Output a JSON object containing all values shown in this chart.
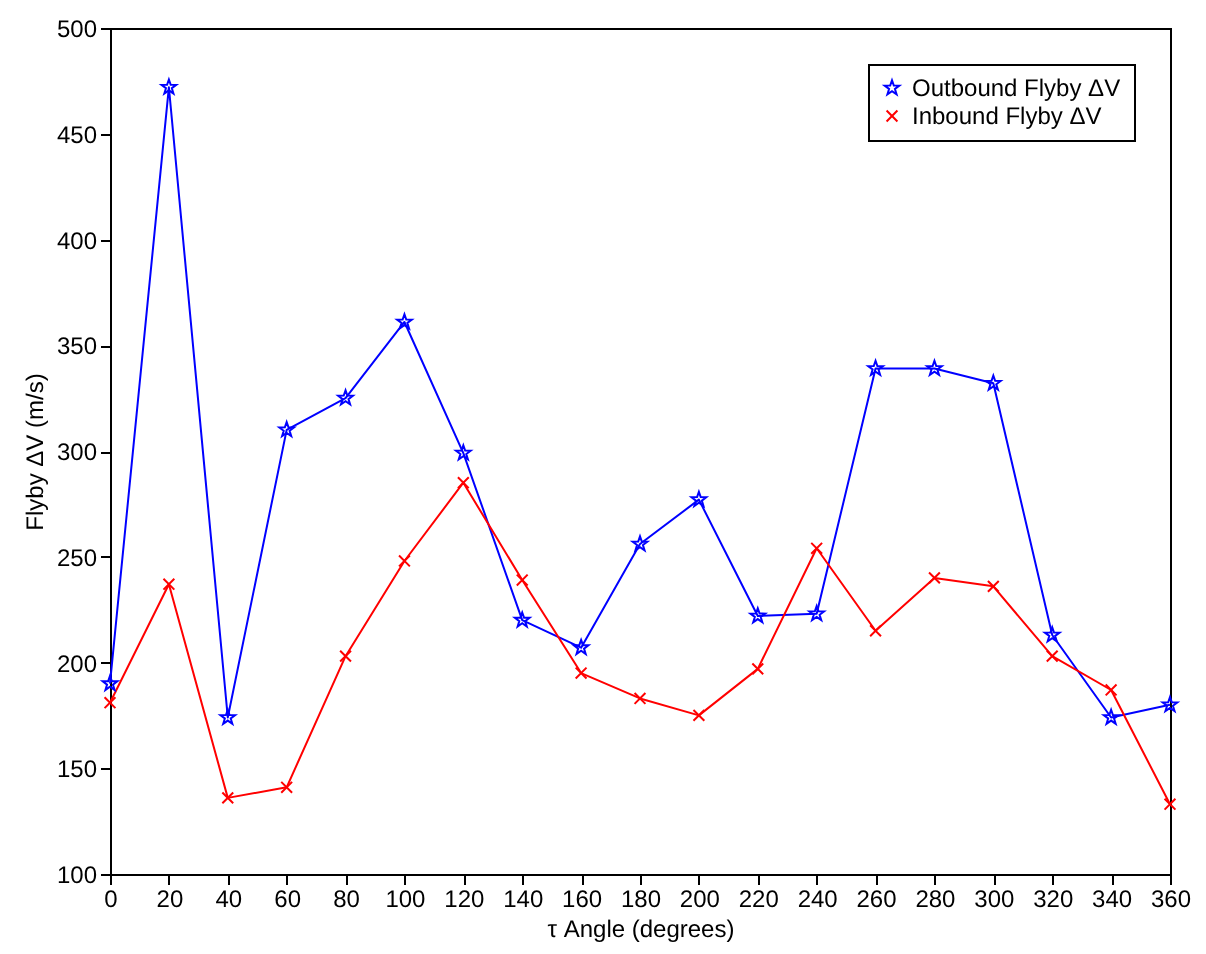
{
  "chart_data": {
    "type": "line",
    "xlabel": "τ Angle (degrees)",
    "ylabel": "Flyby ΔV (m/s)",
    "x": [
      0,
      20,
      40,
      60,
      80,
      100,
      120,
      140,
      160,
      180,
      200,
      220,
      240,
      260,
      280,
      300,
      320,
      340,
      360
    ],
    "series": [
      {
        "name": "Outbound Flyby ΔV",
        "color": "#0000ff",
        "marker": "star",
        "values": [
          190,
          472,
          174,
          310,
          325,
          361,
          299,
          220,
          207,
          256,
          277,
          222,
          223,
          339,
          339,
          332,
          213,
          174,
          180
        ]
      },
      {
        "name": "Inbound Flyby ΔV",
        "color": "#ff0000",
        "marker": "cross",
        "values": [
          181,
          237,
          136,
          141,
          203,
          248,
          285,
          239,
          195,
          183,
          175,
          197,
          254,
          215,
          240,
          236,
          203,
          187,
          133
        ]
      }
    ],
    "xlim": [
      0,
      360
    ],
    "xticks": [
      0,
      20,
      40,
      60,
      80,
      100,
      120,
      140,
      160,
      180,
      200,
      220,
      240,
      260,
      280,
      300,
      320,
      340,
      360
    ],
    "ylim": [
      100,
      500
    ],
    "yticks": [
      100,
      150,
      200,
      250,
      300,
      350,
      400,
      450,
      500
    ],
    "grid": false,
    "legend": "top right",
    "line_style": "solid"
  }
}
